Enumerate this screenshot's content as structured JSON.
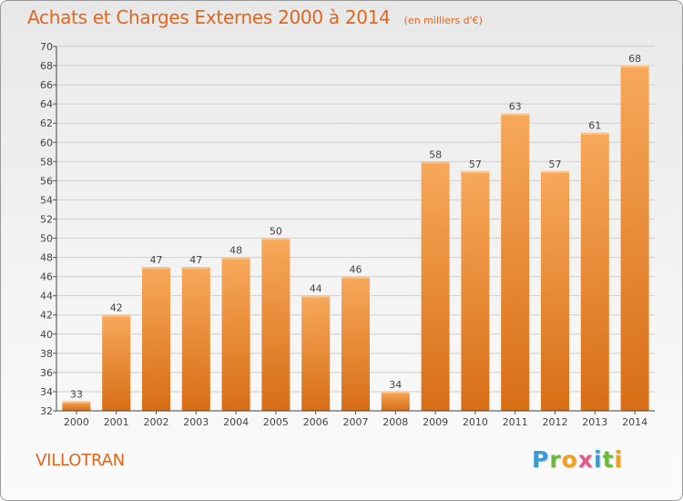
{
  "title": "Achats et Charges Externes 2000 à 2014",
  "subtitle": "(en milliers d'€)",
  "commune": "VILLOTRAN",
  "logo": {
    "text": "Proxiti",
    "letter_colors": [
      "#3a9bd6",
      "#6dbb3b",
      "#f0a020",
      "#e05a8a",
      "#3a9bd6",
      "#6dbb3b",
      "#f0a020"
    ]
  },
  "colors": {
    "bar_top": "#f7a95a",
    "bar_bottom": "#d86e16",
    "text": "#e0661e",
    "grid": "#cfcfcf"
  },
  "chart_data": {
    "type": "bar",
    "categories": [
      "2000",
      "2001",
      "2002",
      "2003",
      "2004",
      "2005",
      "2006",
      "2007",
      "2008",
      "2009",
      "2010",
      "2011",
      "2012",
      "2013",
      "2014"
    ],
    "values": [
      33,
      42,
      47,
      47,
      48,
      50,
      44,
      46,
      34,
      58,
      57,
      63,
      57,
      61,
      68
    ],
    "ylim": [
      32,
      70
    ],
    "yticks": [
      32,
      34,
      36,
      38,
      40,
      42,
      44,
      46,
      48,
      50,
      52,
      54,
      56,
      58,
      60,
      62,
      64,
      66,
      68,
      70
    ],
    "grid": true,
    "data_labels": true
  }
}
